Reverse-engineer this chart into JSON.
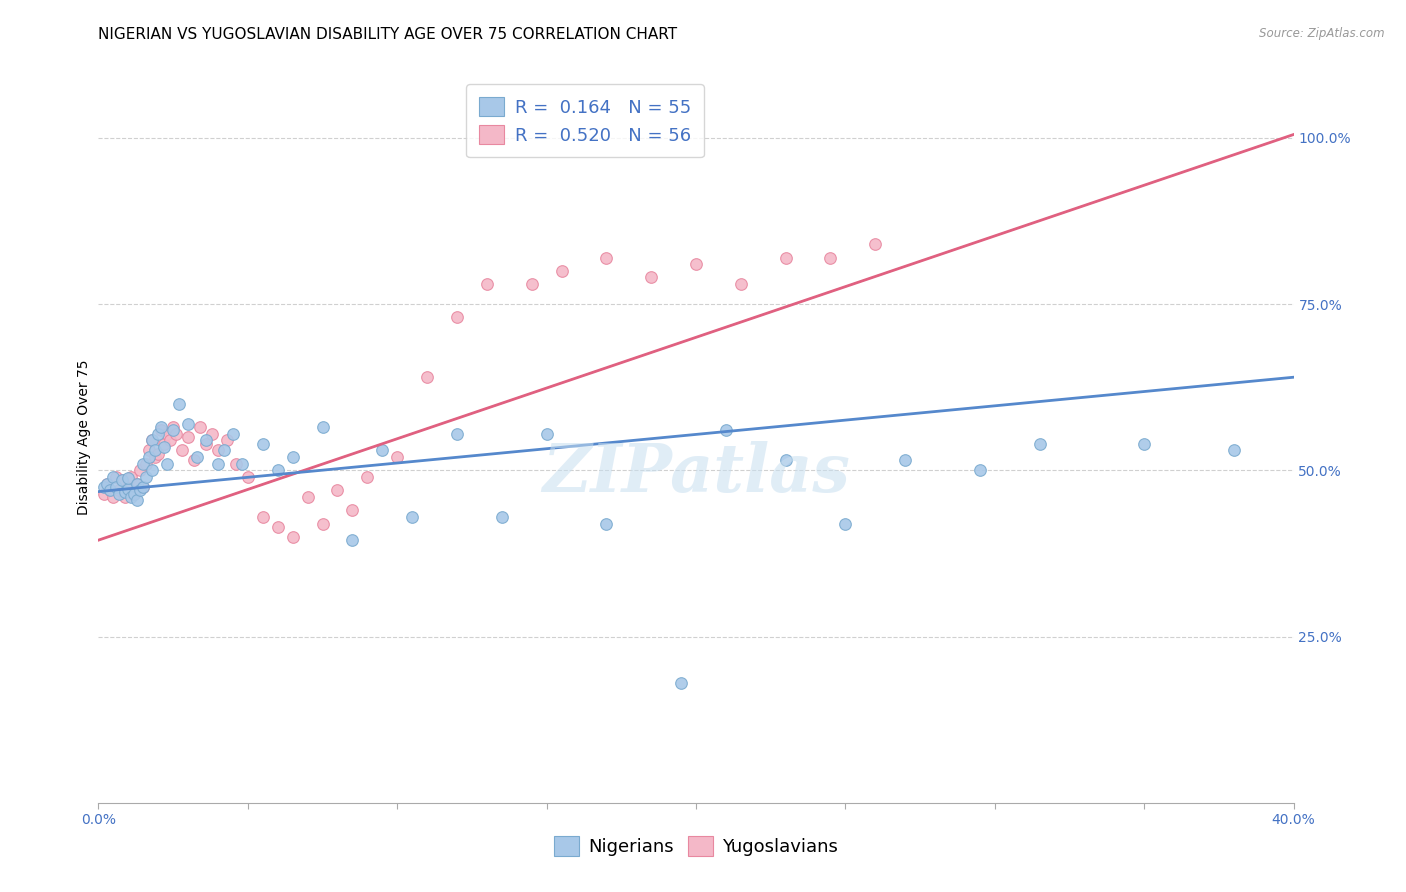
{
  "title": "NIGERIAN VS YUGOSLAVIAN DISABILITY AGE OVER 75 CORRELATION CHART",
  "source": "Source: ZipAtlas.com",
  "ylabel": "Disability Age Over 75",
  "right_yticks": [
    "100.0%",
    "75.0%",
    "50.0%",
    "25.0%"
  ],
  "right_ytick_vals": [
    1.0,
    0.75,
    0.5,
    0.25
  ],
  "legend_blue": "R =  0.164   N = 55",
  "legend_pink": "R =  0.520   N = 56",
  "legend_label_blue": "Nigerians",
  "legend_label_pink": "Yugoslavians",
  "color_blue": "#a8c8e8",
  "color_pink": "#f4b8c8",
  "color_blue_edge": "#7aaacf",
  "color_pink_edge": "#e888a0",
  "color_blue_line": "#5588cc",
  "color_pink_line": "#e06080",
  "color_grey_line": "#cccccc",
  "watermark": "ZIPatlas",
  "xmin": 0.0,
  "xmax": 0.4,
  "ymin": 0.0,
  "ymax": 1.1,
  "blue_scatter_x": [
    0.002,
    0.003,
    0.004,
    0.005,
    0.006,
    0.007,
    0.008,
    0.009,
    0.01,
    0.01,
    0.011,
    0.012,
    0.013,
    0.013,
    0.014,
    0.015,
    0.015,
    0.016,
    0.017,
    0.018,
    0.018,
    0.019,
    0.02,
    0.021,
    0.022,
    0.023,
    0.025,
    0.027,
    0.03,
    0.033,
    0.036,
    0.04,
    0.042,
    0.045,
    0.048,
    0.055,
    0.06,
    0.065,
    0.075,
    0.085,
    0.095,
    0.105,
    0.12,
    0.135,
    0.15,
    0.17,
    0.195,
    0.21,
    0.23,
    0.25,
    0.27,
    0.295,
    0.315,
    0.35,
    0.38
  ],
  "blue_scatter_y": [
    0.475,
    0.48,
    0.47,
    0.49,
    0.475,
    0.465,
    0.485,
    0.468,
    0.472,
    0.488,
    0.46,
    0.465,
    0.48,
    0.455,
    0.47,
    0.475,
    0.51,
    0.49,
    0.52,
    0.5,
    0.545,
    0.53,
    0.555,
    0.565,
    0.535,
    0.51,
    0.56,
    0.6,
    0.57,
    0.52,
    0.545,
    0.51,
    0.53,
    0.555,
    0.51,
    0.54,
    0.5,
    0.52,
    0.565,
    0.395,
    0.53,
    0.43,
    0.555,
    0.43,
    0.555,
    0.42,
    0.18,
    0.56,
    0.515,
    0.42,
    0.515,
    0.5,
    0.54,
    0.54,
    0.53
  ],
  "pink_scatter_x": [
    0.002,
    0.003,
    0.004,
    0.005,
    0.006,
    0.007,
    0.008,
    0.009,
    0.01,
    0.011,
    0.012,
    0.013,
    0.014,
    0.015,
    0.016,
    0.017,
    0.018,
    0.019,
    0.02,
    0.021,
    0.022,
    0.023,
    0.024,
    0.025,
    0.026,
    0.028,
    0.03,
    0.032,
    0.034,
    0.036,
    0.038,
    0.04,
    0.043,
    0.046,
    0.05,
    0.055,
    0.06,
    0.065,
    0.07,
    0.075,
    0.08,
    0.085,
    0.09,
    0.1,
    0.11,
    0.12,
    0.13,
    0.145,
    0.155,
    0.17,
    0.185,
    0.2,
    0.215,
    0.23,
    0.245,
    0.26
  ],
  "pink_scatter_y": [
    0.465,
    0.48,
    0.47,
    0.46,
    0.49,
    0.47,
    0.485,
    0.46,
    0.475,
    0.49,
    0.465,
    0.48,
    0.5,
    0.475,
    0.51,
    0.53,
    0.545,
    0.52,
    0.525,
    0.56,
    0.54,
    0.555,
    0.545,
    0.565,
    0.555,
    0.53,
    0.55,
    0.515,
    0.565,
    0.54,
    0.555,
    0.53,
    0.545,
    0.51,
    0.49,
    0.43,
    0.415,
    0.4,
    0.46,
    0.42,
    0.47,
    0.44,
    0.49,
    0.52,
    0.64,
    0.73,
    0.78,
    0.78,
    0.8,
    0.82,
    0.79,
    0.81,
    0.78,
    0.82,
    0.82,
    0.84
  ],
  "blue_line_x0": 0.0,
  "blue_line_x1": 0.4,
  "blue_line_y0": 0.468,
  "blue_line_y1": 0.64,
  "pink_line_x0": 0.0,
  "pink_line_x1": 0.4,
  "pink_line_y0": 0.395,
  "pink_line_y1": 1.005,
  "grey_line_x0": 0.0,
  "grey_line_x1": 0.4,
  "grey_line_y0": 0.395,
  "grey_line_y1": 1.005,
  "title_fontsize": 11,
  "axis_label_fontsize": 10,
  "tick_fontsize": 10,
  "legend_fontsize": 13
}
